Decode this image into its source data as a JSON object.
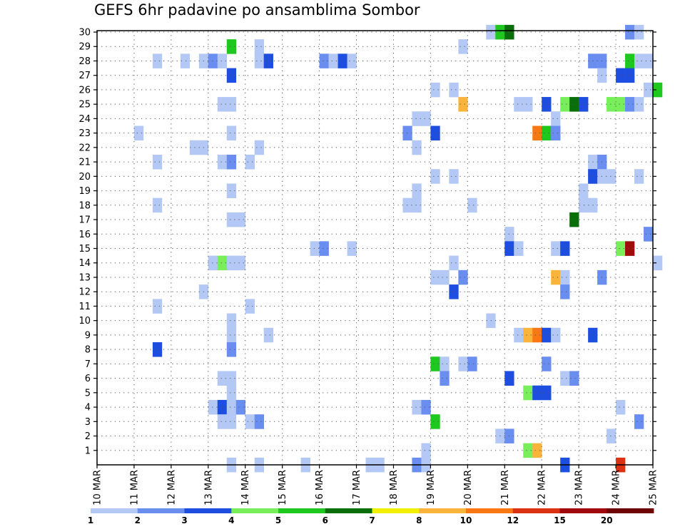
{
  "chart_data": {
    "type": "heatmap",
    "title": "GEFS 6hr padavine po ansamblima Sombor",
    "x_ticks": [
      "10 MAR",
      "11 MAR",
      "12 MAR",
      "13 MAR",
      "14 MAR",
      "15 MAR",
      "16 MAR",
      "17 MAR",
      "18 MAR",
      "19 MAR",
      "20 MAR",
      "21 MAR",
      "22 MAR",
      "23 MAR",
      "24 MAR",
      "25 MAR"
    ],
    "xlim": [
      "10 MAR",
      "25 MAR"
    ],
    "steps_per_day": 4,
    "y_ticks": [
      1,
      2,
      3,
      4,
      5,
      6,
      7,
      8,
      9,
      10,
      11,
      12,
      13,
      14,
      15,
      16,
      17,
      18,
      19,
      20,
      21,
      22,
      23,
      24,
      25,
      26,
      27,
      28,
      29,
      30
    ],
    "ylim": [
      0,
      30
    ],
    "grid": true,
    "colorbar": {
      "labels": [
        "1",
        "2",
        "3",
        "4",
        "5",
        "6",
        "7",
        "8",
        "10",
        "12",
        "15",
        "20"
      ],
      "colors": [
        "#b4c8f5",
        "#6a8ef0",
        "#1e4ee0",
        "#78ef5a",
        "#1ec81e",
        "#0a6e0a",
        "#f0f000",
        "#fab43c",
        "#fa7814",
        "#dc3214",
        "#a00a0a",
        "#6e0000"
      ]
    },
    "cells": [
      {
        "m": 30,
        "c": [
          [
            42,
            0
          ],
          [
            43,
            4
          ],
          [
            44,
            5
          ],
          [
            57,
            1
          ],
          [
            58,
            0
          ]
        ]
      },
      {
        "m": 29,
        "c": [
          [
            14,
            4
          ],
          [
            17,
            0
          ],
          [
            39,
            0
          ]
        ]
      },
      {
        "m": 28,
        "c": [
          [
            6,
            0
          ],
          [
            9,
            0
          ],
          [
            11,
            0
          ],
          [
            12,
            1
          ],
          [
            13,
            0
          ],
          [
            17,
            0
          ],
          [
            18,
            2
          ],
          [
            24,
            1
          ],
          [
            25,
            0
          ],
          [
            26,
            2
          ],
          [
            27,
            0
          ],
          [
            53,
            1
          ],
          [
            54,
            1
          ],
          [
            57,
            4
          ],
          [
            58,
            0
          ],
          [
            59,
            0
          ]
        ]
      },
      {
        "m": 27,
        "c": [
          [
            14,
            2
          ],
          [
            54,
            0
          ],
          [
            56,
            2
          ],
          [
            57,
            2
          ]
        ]
      },
      {
        "m": 26,
        "c": [
          [
            36,
            0
          ],
          [
            38,
            0
          ],
          [
            59,
            0
          ],
          [
            60,
            4
          ]
        ]
      },
      {
        "m": 25,
        "c": [
          [
            13,
            0
          ],
          [
            14,
            0
          ],
          [
            39,
            7
          ],
          [
            45,
            0
          ],
          [
            46,
            0
          ],
          [
            48,
            2
          ],
          [
            50,
            3
          ],
          [
            51,
            5
          ],
          [
            52,
            2
          ],
          [
            55,
            3
          ],
          [
            56,
            3
          ],
          [
            57,
            1
          ],
          [
            58,
            0
          ]
        ]
      },
      {
        "m": 24,
        "c": [
          [
            34,
            0
          ],
          [
            35,
            0
          ],
          [
            49,
            0
          ]
        ]
      },
      {
        "m": 23,
        "c": [
          [
            4,
            0
          ],
          [
            14,
            0
          ],
          [
            33,
            1
          ],
          [
            36,
            2
          ],
          [
            47,
            8
          ],
          [
            48,
            4
          ],
          [
            49,
            1
          ]
        ]
      },
      {
        "m": 22,
        "c": [
          [
            10,
            0
          ],
          [
            11,
            0
          ],
          [
            17,
            0
          ],
          [
            34,
            0
          ]
        ]
      },
      {
        "m": 21,
        "c": [
          [
            6,
            0
          ],
          [
            13,
            0
          ],
          [
            14,
            1
          ],
          [
            16,
            0
          ],
          [
            53,
            0
          ],
          [
            54,
            1
          ]
        ]
      },
      {
        "m": 20,
        "c": [
          [
            36,
            0
          ],
          [
            38,
            0
          ],
          [
            53,
            2
          ],
          [
            54,
            0
          ],
          [
            55,
            0
          ],
          [
            58,
            0
          ]
        ]
      },
      {
        "m": 19,
        "c": [
          [
            14,
            0
          ],
          [
            34,
            0
          ],
          [
            52,
            0
          ]
        ]
      },
      {
        "m": 18,
        "c": [
          [
            6,
            0
          ],
          [
            33,
            0
          ],
          [
            34,
            0
          ],
          [
            40,
            0
          ],
          [
            52,
            0
          ],
          [
            53,
            0
          ]
        ]
      },
      {
        "m": 17,
        "c": [
          [
            14,
            0
          ],
          [
            15,
            0
          ],
          [
            51,
            5
          ]
        ]
      },
      {
        "m": 16,
        "c": [
          [
            44,
            0
          ],
          [
            59,
            1
          ]
        ]
      },
      {
        "m": 15,
        "c": [
          [
            23,
            0
          ],
          [
            24,
            1
          ],
          [
            27,
            0
          ],
          [
            44,
            2
          ],
          [
            45,
            0
          ],
          [
            49,
            0
          ],
          [
            50,
            2
          ],
          [
            56,
            3
          ],
          [
            57,
            10
          ]
        ]
      },
      {
        "m": 14,
        "c": [
          [
            12,
            0
          ],
          [
            13,
            3
          ],
          [
            14,
            0
          ],
          [
            15,
            0
          ],
          [
            38,
            0
          ],
          [
            60,
            0
          ]
        ]
      },
      {
        "m": 13,
        "c": [
          [
            36,
            0
          ],
          [
            37,
            0
          ],
          [
            39,
            1
          ],
          [
            49,
            7
          ],
          [
            50,
            0
          ],
          [
            54,
            1
          ]
        ]
      },
      {
        "m": 12,
        "c": [
          [
            11,
            0
          ],
          [
            38,
            2
          ],
          [
            50,
            1
          ]
        ]
      },
      {
        "m": 11,
        "c": [
          [
            6,
            0
          ],
          [
            16,
            0
          ]
        ]
      },
      {
        "m": 10,
        "c": [
          [
            14,
            0
          ],
          [
            42,
            0
          ]
        ]
      },
      {
        "m": 9,
        "c": [
          [
            14,
            0
          ],
          [
            18,
            0
          ],
          [
            45,
            0
          ],
          [
            46,
            7
          ],
          [
            47,
            8
          ],
          [
            48,
            2
          ],
          [
            49,
            0
          ],
          [
            53,
            2
          ]
        ]
      },
      {
        "m": 8,
        "c": [
          [
            6,
            2
          ],
          [
            14,
            1
          ]
        ]
      },
      {
        "m": 7,
        "c": [
          [
            36,
            4
          ],
          [
            37,
            0
          ],
          [
            39,
            0
          ],
          [
            40,
            1
          ],
          [
            48,
            1
          ]
        ]
      },
      {
        "m": 6,
        "c": [
          [
            13,
            0
          ],
          [
            14,
            0
          ],
          [
            37,
            1
          ],
          [
            44,
            2
          ],
          [
            50,
            0
          ],
          [
            51,
            1
          ]
        ]
      },
      {
        "m": 5,
        "c": [
          [
            14,
            0
          ],
          [
            46,
            3
          ],
          [
            47,
            2
          ],
          [
            48,
            2
          ]
        ]
      },
      {
        "m": 4,
        "c": [
          [
            12,
            0
          ],
          [
            13,
            2
          ],
          [
            14,
            0
          ],
          [
            15,
            1
          ],
          [
            34,
            0
          ],
          [
            35,
            1
          ],
          [
            56,
            0
          ]
        ]
      },
      {
        "m": 3,
        "c": [
          [
            13,
            0
          ],
          [
            14,
            0
          ],
          [
            16,
            0
          ],
          [
            17,
            1
          ],
          [
            36,
            4
          ],
          [
            58,
            1
          ]
        ]
      },
      {
        "m": 2,
        "c": [
          [
            43,
            0
          ],
          [
            44,
            1
          ],
          [
            55,
            0
          ]
        ]
      },
      {
        "m": 1,
        "c": [
          [
            35,
            0
          ],
          [
            46,
            3
          ],
          [
            47,
            7
          ]
        ]
      },
      {
        "m": 0,
        "c": [
          [
            14,
            0
          ],
          [
            17,
            0
          ],
          [
            22,
            0
          ],
          [
            29,
            0
          ],
          [
            30,
            0
          ],
          [
            34,
            1
          ],
          [
            35,
            0
          ],
          [
            50,
            2
          ],
          [
            56,
            9
          ]
        ]
      }
    ]
  }
}
